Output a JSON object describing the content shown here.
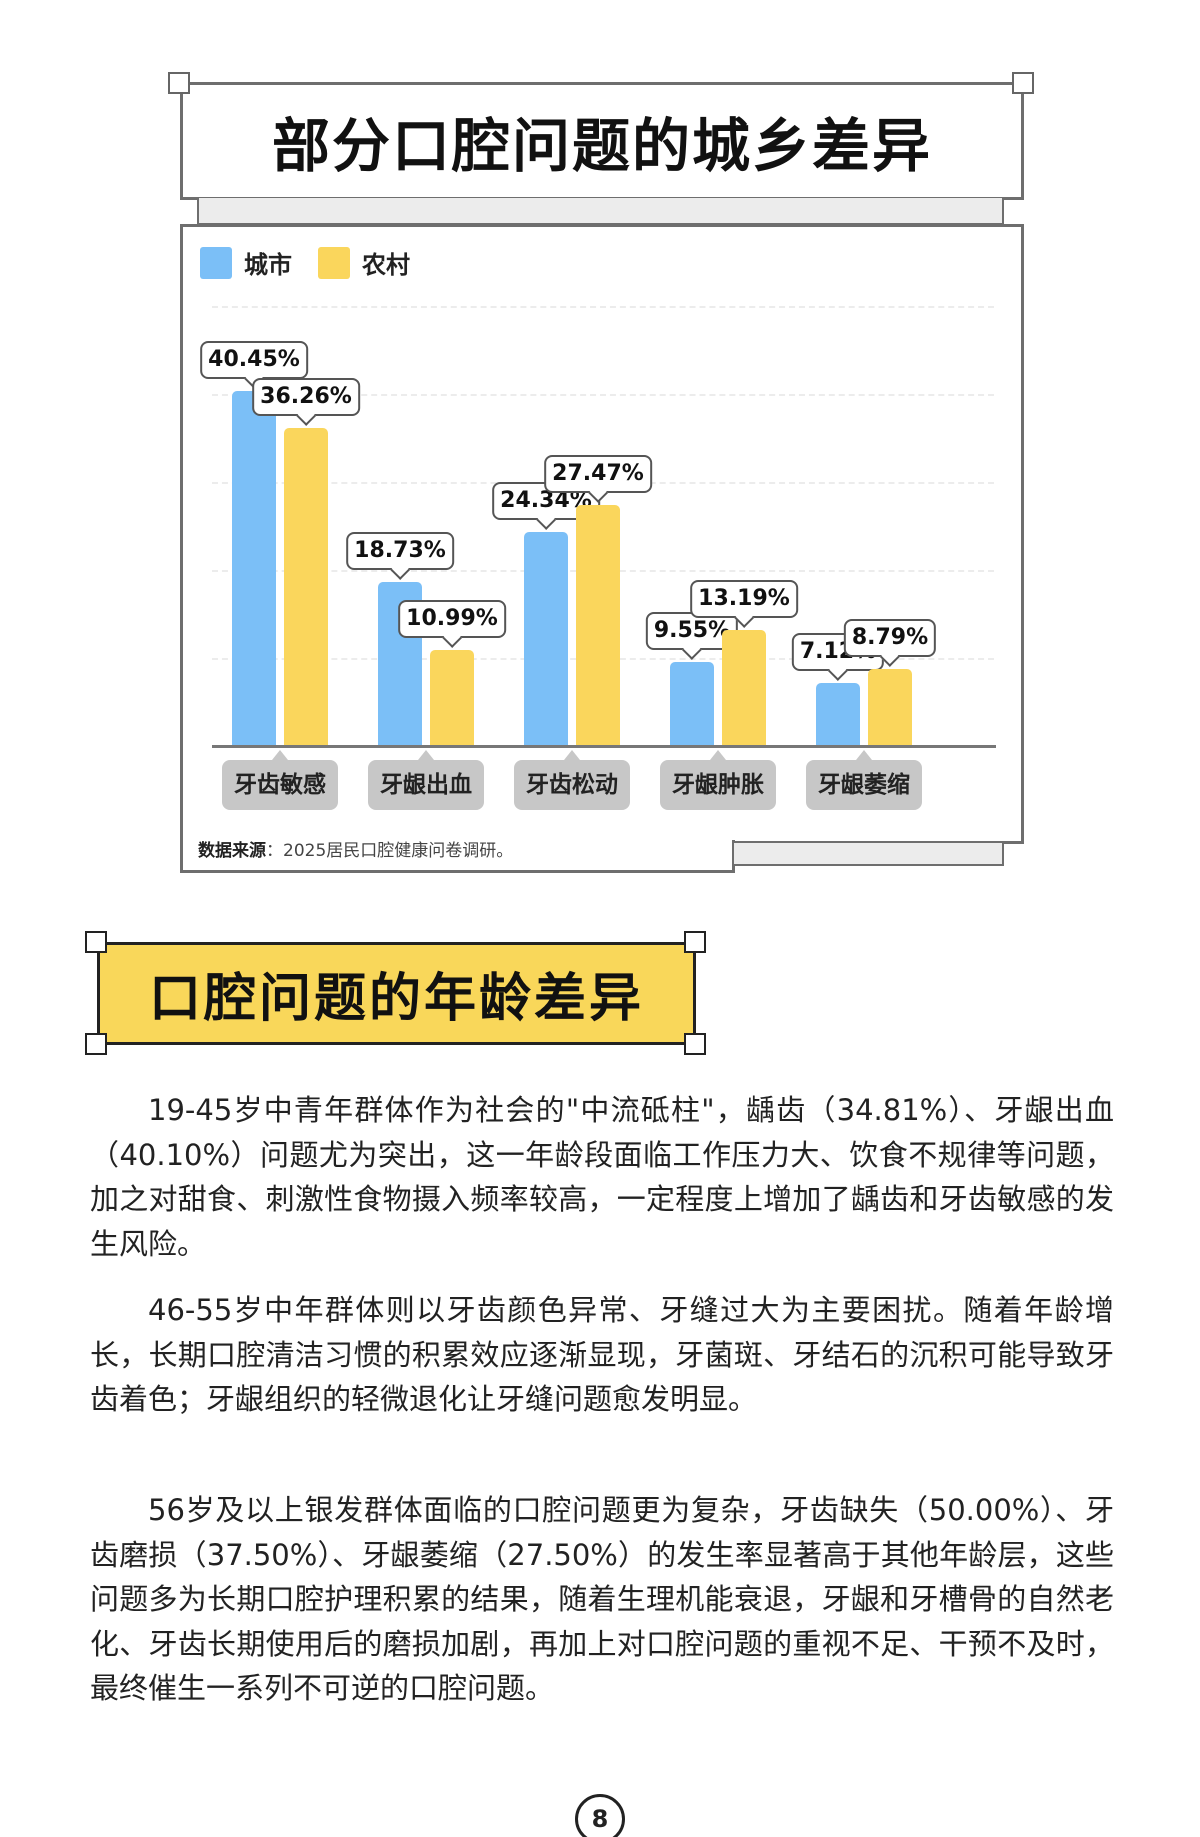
{
  "section1": {
    "title": "部分口腔问题的城乡差异"
  },
  "chart_data": {
    "type": "bar",
    "title": "部分口腔问题的城乡差异",
    "categories": [
      "牙齿敏感",
      "牙龈出血",
      "牙齿松动",
      "牙龈肿胀",
      "牙龈萎缩"
    ],
    "series": [
      {
        "name": "城市",
        "color": "#7bbff7",
        "values": [
          40.45,
          18.73,
          24.34,
          9.55,
          7.12
        ],
        "labels": [
          "40.45%",
          "18.73%",
          "24.34%",
          "9.55%",
          "7.12%"
        ]
      },
      {
        "name": "农村",
        "color": "#fad65c",
        "values": [
          36.26,
          10.99,
          27.47,
          13.19,
          8.79
        ],
        "labels": [
          "36.26%",
          "10.99%",
          "27.47%",
          "13.19%",
          "8.79%"
        ]
      }
    ],
    "xlabel": "",
    "ylabel": "",
    "ylim": [
      0,
      50
    ],
    "grid": true,
    "gridlines": [
      10,
      20,
      30,
      40,
      50
    ],
    "legend_position": "top-left",
    "unit": "%",
    "source_label": "数据来源",
    "source_text": "：2025居民口腔健康问卷调研。"
  },
  "section2": {
    "title": "口腔问题的年龄差异",
    "paragraphs": [
      "19-45岁中青年群体作为社会的\"中流砥柱\"，龋齿（34.81%）、牙龈出血（40.10%）问题尤为突出，这一年龄段面临工作压力大、饮食不规律等问题，加之对甜食、刺激性食物摄入频率较高，一定程度上增加了龋齿和牙齿敏感的发生风险。",
      "46-55岁中年群体则以牙齿颜色异常、牙缝过大为主要困扰。随着年龄增长，长期口腔清洁习惯的积累效应逐渐显现，牙菌斑、牙结石的沉积可能导致牙齿着色；牙龈组织的轻微退化让牙缝问题愈发明显。",
      "56岁及以上银发群体面临的口腔问题更为复杂，牙齿缺失（50.00%）、牙齿磨损（37.50%）、牙龈萎缩（27.50%）的发生率显著高于其他年龄层，这些问题多为长期口腔护理积累的结果，随着生理机能衰退，牙龈和牙槽骨的自然老化、牙齿长期使用后的磨损加剧，再加上对口腔问题的重视不足、干预不及时，最终催生一系列不可逆的口腔问题。"
    ]
  },
  "page_number": "8"
}
